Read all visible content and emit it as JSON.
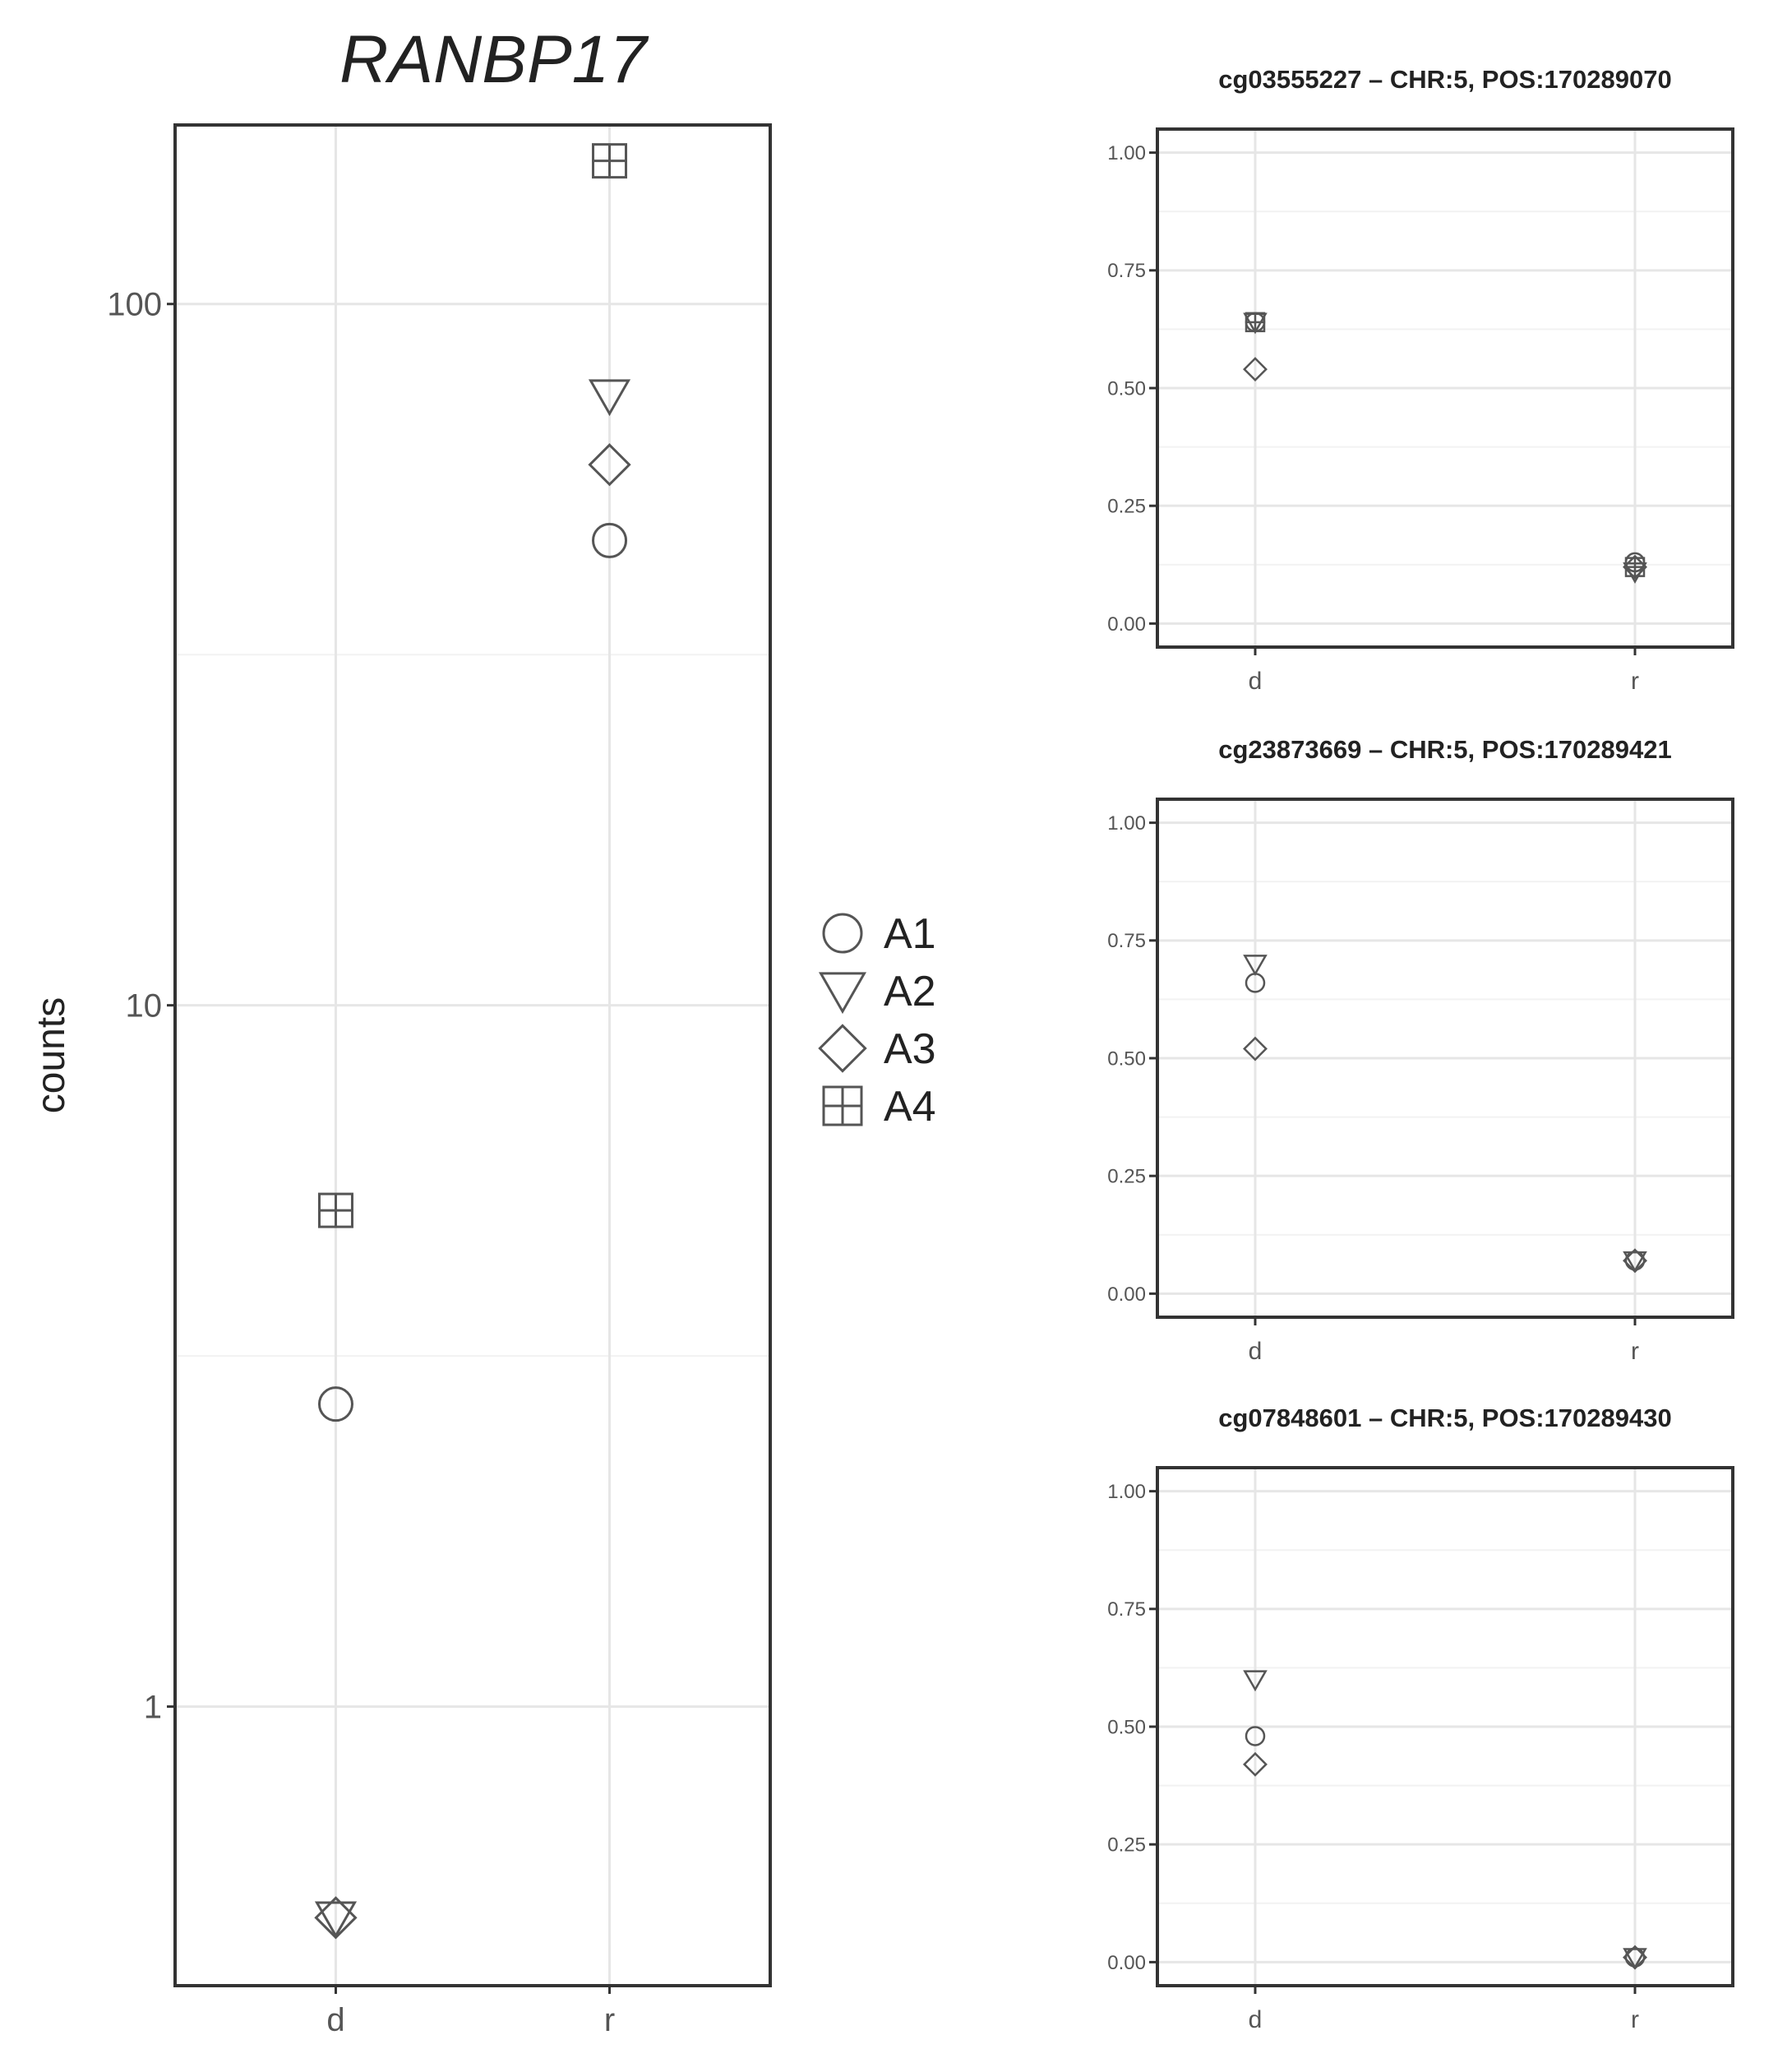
{
  "chart_data": [
    {
      "type": "scatter",
      "title": "RANBP17",
      "xlabel": "",
      "ylabel": "counts",
      "y_scale": "log10",
      "ylim": [
        0.4,
        180
      ],
      "categories": [
        "d",
        "r"
      ],
      "y_tick_values": [
        1,
        10,
        100
      ],
      "y_tick_labels": [
        "1",
        "10",
        "100"
      ],
      "grid": true,
      "series": [
        {
          "name": "A1",
          "shape": "circle",
          "values": [
            2.7,
            46
          ]
        },
        {
          "name": "A2",
          "shape": "triangle-down",
          "values": [
            0.5,
            74
          ]
        },
        {
          "name": "A3",
          "shape": "diamond",
          "values": [
            0.5,
            59
          ]
        },
        {
          "name": "A4",
          "shape": "square-cross",
          "values": [
            5.1,
            160
          ]
        }
      ]
    },
    {
      "type": "scatter",
      "title": "cg03555227 – CHR:5, POS:170289070",
      "xlabel": "",
      "ylabel": "",
      "ylim": [
        -0.05,
        1.05
      ],
      "categories": [
        "d",
        "r"
      ],
      "y_tick_values": [
        0,
        0.25,
        0.5,
        0.75,
        1
      ],
      "y_tick_labels": [
        "0.00",
        "0.25",
        "0.50",
        "0.75",
        "1.00"
      ],
      "grid": true,
      "series": [
        {
          "name": "A1",
          "shape": "circle",
          "values": [
            0.64,
            0.13
          ]
        },
        {
          "name": "A2",
          "shape": "triangle-down",
          "values": [
            0.64,
            0.11
          ]
        },
        {
          "name": "A3",
          "shape": "diamond",
          "values": [
            0.54,
            0.12
          ]
        },
        {
          "name": "A4",
          "shape": "square-cross",
          "values": [
            0.64,
            0.12
          ]
        }
      ]
    },
    {
      "type": "scatter",
      "title": "cg23873669 – CHR:5, POS:170289421",
      "xlabel": "",
      "ylabel": "",
      "ylim": [
        -0.05,
        1.05
      ],
      "categories": [
        "d",
        "r"
      ],
      "y_tick_values": [
        0,
        0.25,
        0.5,
        0.75,
        1
      ],
      "y_tick_labels": [
        "0.00",
        "0.25",
        "0.50",
        "0.75",
        "1.00"
      ],
      "grid": true,
      "series": [
        {
          "name": "A1",
          "shape": "circle",
          "values": [
            0.66,
            0.07
          ]
        },
        {
          "name": "A2",
          "shape": "triangle-down",
          "values": [
            0.7,
            0.07
          ]
        },
        {
          "name": "A3",
          "shape": "diamond",
          "values": [
            0.52,
            0.07
          ]
        }
      ]
    },
    {
      "type": "scatter",
      "title": "cg07848601 – CHR:5, POS:170289430",
      "xlabel": "",
      "ylabel": "",
      "ylim": [
        -0.05,
        1.05
      ],
      "categories": [
        "d",
        "r"
      ],
      "y_tick_values": [
        0,
        0.25,
        0.5,
        0.75,
        1
      ],
      "y_tick_labels": [
        "0.00",
        "0.25",
        "0.50",
        "0.75",
        "1.00"
      ],
      "grid": true,
      "series": [
        {
          "name": "A1",
          "shape": "circle",
          "values": [
            0.48,
            0.01
          ]
        },
        {
          "name": "A2",
          "shape": "triangle-down",
          "values": [
            0.6,
            0.01
          ]
        },
        {
          "name": "A3",
          "shape": "diamond",
          "values": [
            0.42,
            0.01
          ]
        }
      ]
    }
  ],
  "legend": {
    "placement": "between-panels",
    "items": [
      {
        "name": "A1",
        "shape": "circle"
      },
      {
        "name": "A2",
        "shape": "triangle-down"
      },
      {
        "name": "A3",
        "shape": "diamond"
      },
      {
        "name": "A4",
        "shape": "square-cross"
      }
    ]
  },
  "colors": {
    "marker": "#555555",
    "frame": "#333333",
    "grid": "#e6e6e6",
    "text": "#222222"
  }
}
